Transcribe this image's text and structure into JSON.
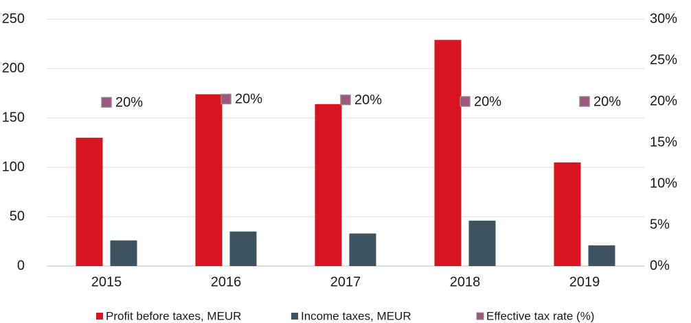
{
  "chart_data": {
    "type": "bar",
    "categories": [
      "2015",
      "2016",
      "2017",
      "2018",
      "2019"
    ],
    "series": [
      {
        "name": "Profit before taxes, MEUR",
        "color": "#d7141f",
        "values": [
          130,
          174,
          164,
          229,
          105
        ]
      },
      {
        "name": "Income taxes, MEUR",
        "color": "#3d5360",
        "values": [
          26,
          35,
          33,
          46,
          21
        ]
      },
      {
        "name": "Effective tax rate (%)",
        "color": "#a0557e",
        "type": "scatter",
        "axis": "y2",
        "values": [
          19.9,
          20.3,
          20.2,
          20.0,
          20.0
        ],
        "value_labels": [
          "20%",
          "20%",
          "20%",
          "20%",
          "20%"
        ]
      }
    ],
    "ylim": [
      0,
      250
    ],
    "yticks": [
      0,
      50,
      100,
      150,
      200,
      250
    ],
    "y2lim": [
      0,
      30
    ],
    "y2ticks": [
      {
        "value": 0,
        "label": "0%"
      },
      {
        "value": 5,
        "label": "5%"
      },
      {
        "value": 10,
        "label": "10%"
      },
      {
        "value": 15,
        "label": "15%"
      },
      {
        "value": 20,
        "label": "20%"
      },
      {
        "value": 25,
        "label": "25%"
      },
      {
        "value": 30,
        "label": "30%"
      }
    ],
    "grid": true,
    "legend": "bottom"
  }
}
